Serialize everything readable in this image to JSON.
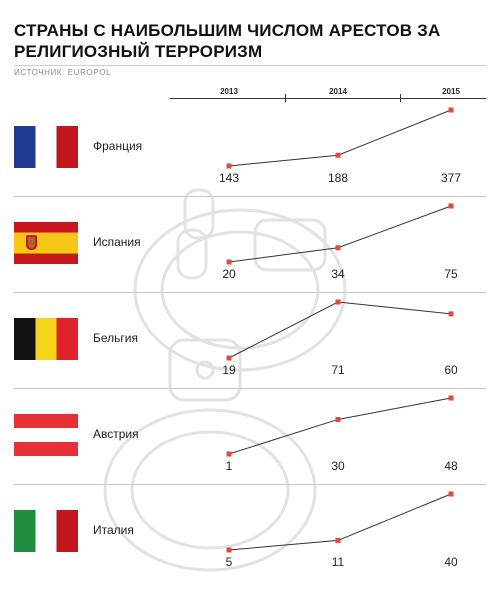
{
  "title": "СТРАНЫ С НАИБОЛЬШИМ ЧИСЛОМ АРЕСТОВ ЗА РЕЛИГИОЗНЫЙ ТЕРРОРИЗМ",
  "source": "ИСТОЧНИК: EUROPOL",
  "chart_data": {
    "type": "line",
    "x": [
      "2013",
      "2014",
      "2015"
    ],
    "series": [
      {
        "name": "Франция",
        "values": [
          143,
          188,
          377
        ]
      },
      {
        "name": "Испания",
        "values": [
          20,
          34,
          75
        ]
      },
      {
        "name": "Бельгия",
        "values": [
          19,
          71,
          60
        ]
      },
      {
        "name": "Австрия",
        "values": [
          1,
          30,
          48
        ]
      },
      {
        "name": "Италия",
        "values": [
          5,
          11,
          40
        ]
      }
    ],
    "colors": {
      "line": "#333333",
      "marker": "#e8463a"
    },
    "grid": false
  },
  "flags": [
    {
      "icon": "flag-france-icon",
      "colors": [
        "#1f3b8f",
        "#ffffff",
        "#c2161c"
      ],
      "orientation": "vertical"
    },
    {
      "icon": "flag-spain-icon",
      "colors": [
        "#c8161d",
        "#f6c917",
        "#c8161d"
      ],
      "orientation": "horizontal"
    },
    {
      "icon": "flag-belgium-icon",
      "colors": [
        "#111111",
        "#f6d31b",
        "#e0212e"
      ],
      "orientation": "vertical"
    },
    {
      "icon": "flag-austria-icon",
      "colors": [
        "#e53036",
        "#ffffff",
        "#e53036"
      ],
      "orientation": "horizontal"
    },
    {
      "icon": "flag-italy-icon",
      "colors": [
        "#1e8d3e",
        "#ffffff",
        "#c2161c"
      ],
      "orientation": "vertical"
    }
  ],
  "watermark": {
    "icon": "handcuffs-icon"
  }
}
